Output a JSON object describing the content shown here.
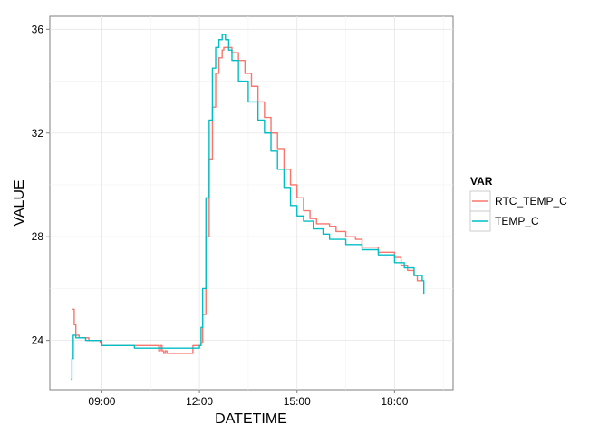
{
  "chart_data": {
    "type": "line",
    "title": "",
    "xlabel": "DATETIME",
    "ylabel": "VALUE",
    "x_ticks": [
      "09:00",
      "12:00",
      "15:00",
      "18:00"
    ],
    "x_tick_hours": [
      9,
      12,
      15,
      18
    ],
    "y_ticks": [
      "24",
      "28",
      "32",
      "36"
    ],
    "y_tick_values": [
      24,
      28,
      32,
      36
    ],
    "xlim": [
      7.4,
      19.8
    ],
    "ylim": [
      22.1,
      36.5
    ],
    "grid": true,
    "legend": {
      "title": "VAR",
      "placement": "right"
    },
    "series": [
      {
        "name": "RTC_TEMP_C",
        "color": "#F8766D",
        "hours": [
          8.1,
          8.15,
          8.2,
          8.3,
          8.6,
          8.95,
          9.0,
          9.5,
          10.0,
          10.5,
          10.7,
          10.75,
          10.8,
          10.85,
          10.9,
          10.95,
          11.0,
          11.5,
          11.8,
          11.9,
          12.0,
          12.05,
          12.1,
          12.2,
          12.3,
          12.4,
          12.5,
          12.6,
          12.7,
          12.75,
          12.85,
          13.0,
          13.2,
          13.4,
          13.6,
          13.8,
          14.0,
          14.2,
          14.4,
          14.6,
          14.8,
          15.0,
          15.2,
          15.4,
          15.6,
          15.8,
          16.0,
          16.2,
          16.5,
          16.8,
          17.0,
          17.5,
          18.0,
          18.2,
          18.4,
          18.6,
          18.7,
          18.85
        ],
        "values": [
          25.2,
          24.6,
          24.2,
          24.1,
          24.0,
          23.9,
          23.8,
          23.8,
          23.8,
          23.8,
          23.8,
          23.6,
          23.8,
          23.6,
          23.5,
          23.6,
          23.5,
          23.5,
          23.8,
          23.8,
          23.8,
          23.9,
          25.0,
          28.0,
          31.0,
          33.0,
          34.3,
          34.9,
          35.2,
          35.3,
          35.3,
          35.1,
          34.8,
          34.3,
          33.8,
          33.2,
          32.6,
          32.0,
          31.4,
          30.6,
          30.0,
          29.5,
          29.0,
          28.7,
          28.5,
          28.5,
          28.4,
          28.2,
          28.0,
          27.9,
          27.6,
          27.4,
          27.2,
          26.9,
          26.7,
          26.5,
          26.3,
          26.3
        ]
      },
      {
        "name": "TEMP_C",
        "color": "#00BFC4",
        "hours": [
          8.05,
          8.08,
          8.12,
          8.2,
          8.5,
          9.0,
          9.5,
          10.0,
          10.5,
          11.0,
          11.5,
          11.9,
          12.0,
          12.05,
          12.1,
          12.2,
          12.3,
          12.4,
          12.5,
          12.6,
          12.7,
          12.75,
          12.8,
          12.9,
          13.0,
          13.2,
          13.5,
          13.8,
          14.0,
          14.2,
          14.4,
          14.6,
          14.8,
          15.0,
          15.2,
          15.5,
          15.8,
          16.0,
          16.5,
          17.0,
          17.5,
          18.0,
          18.3,
          18.6,
          18.85,
          18.9
        ],
        "values": [
          22.5,
          23.3,
          24.2,
          24.1,
          24.0,
          23.8,
          23.8,
          23.7,
          23.7,
          23.7,
          23.7,
          23.7,
          23.8,
          24.5,
          26.0,
          29.5,
          32.5,
          34.5,
          35.3,
          35.6,
          35.8,
          35.8,
          35.6,
          35.2,
          34.8,
          34.0,
          33.2,
          32.5,
          32.0,
          31.3,
          30.6,
          29.9,
          29.2,
          28.8,
          28.6,
          28.3,
          28.1,
          27.9,
          27.7,
          27.5,
          27.3,
          27.0,
          26.8,
          26.5,
          26.3,
          25.8
        ]
      }
    ]
  }
}
